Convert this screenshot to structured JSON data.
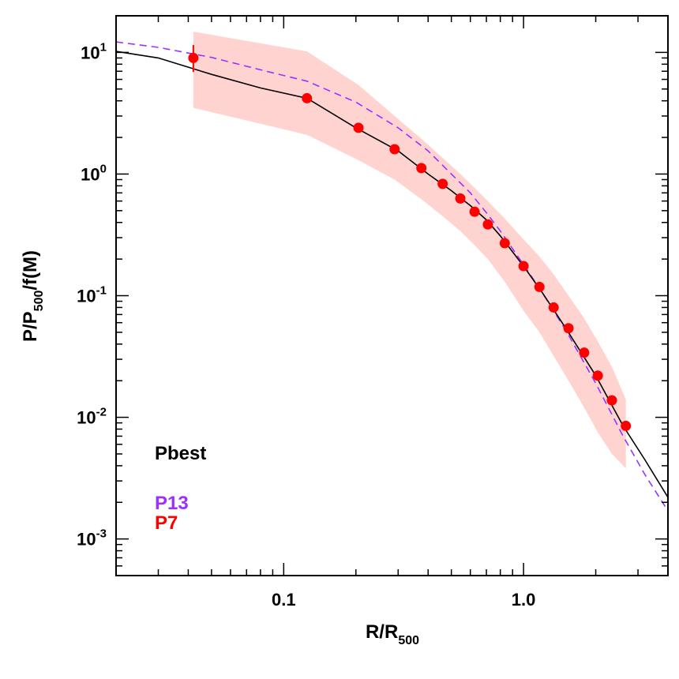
{
  "chart_data": {
    "type": "line",
    "xscale": "log",
    "yscale": "log",
    "xlim": [
      0.02,
      4.0
    ],
    "ylim": [
      0.0005,
      20
    ],
    "grid": false,
    "legend_placement": "bottom-left",
    "xlabel": {
      "main": "R/R",
      "sub": "500"
    },
    "ylabel": {
      "p1": "P/P",
      "sub": "500",
      "p2": "/f(M)"
    },
    "x_ticks": [
      {
        "value": 0.1,
        "label": "0.1"
      },
      {
        "value": 1.0,
        "label": "1.0"
      }
    ],
    "y_ticks": [
      {
        "value": 10,
        "base": "10",
        "exp": "1"
      },
      {
        "value": 1,
        "base": "10",
        "exp": "0"
      },
      {
        "value": 0.1,
        "base": "10",
        "exp": "-1"
      },
      {
        "value": 0.01,
        "base": "10",
        "exp": "-2"
      },
      {
        "value": 0.001,
        "base": "10",
        "exp": "-3"
      }
    ],
    "series": [
      {
        "name": "Pbest",
        "style": "solid",
        "color": "#000000",
        "x": [
          0.02,
          0.03,
          0.05,
          0.08,
          0.125,
          0.2,
          0.3,
          0.4,
          0.5,
          0.6,
          0.7,
          0.8,
          1.0,
          1.2,
          1.5,
          2.0,
          2.6,
          3.2,
          4.0
        ],
        "y": [
          10.2,
          9.0,
          6.6,
          5.1,
          4.2,
          2.4,
          1.55,
          1.0,
          0.73,
          0.55,
          0.42,
          0.31,
          0.175,
          0.105,
          0.054,
          0.022,
          0.0085,
          0.0045,
          0.0022
        ]
      },
      {
        "name": "P13",
        "style": "dashed",
        "color": "#9b30ff",
        "x": [
          0.02,
          0.03,
          0.05,
          0.08,
          0.125,
          0.2,
          0.3,
          0.4,
          0.5,
          0.6,
          0.7,
          0.8,
          1.0,
          1.2,
          1.5,
          2.0,
          2.6,
          3.2,
          4.0
        ],
        "y": [
          12.2,
          11.0,
          9.1,
          7.2,
          5.8,
          3.9,
          2.4,
          1.55,
          1.0,
          0.7,
          0.48,
          0.34,
          0.18,
          0.105,
          0.052,
          0.019,
          0.007,
          0.0034,
          0.0017
        ]
      },
      {
        "name": "P7",
        "style": "markers",
        "color": "#ff0000",
        "band_color": "#ffd4d0",
        "x": [
          0.042,
          0.125,
          0.205,
          0.29,
          0.375,
          0.46,
          0.545,
          0.625,
          0.71,
          0.835,
          1.0,
          1.165,
          1.335,
          1.54,
          1.79,
          2.04,
          2.335,
          2.67
        ],
        "y": [
          9.0,
          4.2,
          2.4,
          1.6,
          1.12,
          0.83,
          0.63,
          0.49,
          0.385,
          0.27,
          0.175,
          0.118,
          0.08,
          0.054,
          0.034,
          0.022,
          0.0138,
          0.0085
        ],
        "yerr_low": [
          6.9,
          4.0,
          2.3,
          1.55,
          1.09,
          0.81,
          0.61,
          0.48,
          0.375,
          0.265,
          0.17,
          0.115,
          0.078,
          0.052,
          0.033,
          0.021,
          0.013,
          0.0082
        ],
        "yerr_high": [
          11.5,
          4.4,
          2.5,
          1.67,
          1.16,
          0.86,
          0.65,
          0.51,
          0.395,
          0.28,
          0.18,
          0.121,
          0.082,
          0.056,
          0.035,
          0.023,
          0.0145,
          0.0089
        ],
        "band_x": [
          0.042,
          0.125,
          0.205,
          0.29,
          0.375,
          0.46,
          0.545,
          0.625,
          0.71,
          0.835,
          1.0,
          1.165,
          1.335,
          1.54,
          1.79,
          2.04,
          2.335,
          2.67
        ],
        "band_low": [
          3.5,
          2.1,
          1.3,
          0.9,
          0.62,
          0.45,
          0.34,
          0.26,
          0.2,
          0.13,
          0.075,
          0.05,
          0.032,
          0.02,
          0.012,
          0.0075,
          0.005,
          0.0038
        ],
        "band_high": [
          14.8,
          10.2,
          5.4,
          3.0,
          1.95,
          1.36,
          1.0,
          0.77,
          0.6,
          0.43,
          0.29,
          0.21,
          0.15,
          0.1,
          0.065,
          0.042,
          0.026,
          0.014
        ]
      }
    ],
    "legend": [
      {
        "label": "Pbest",
        "color": "#000000"
      },
      {
        "label": "P13",
        "color": "#9b30ff"
      },
      {
        "label": "P7",
        "color": "#ff0000"
      }
    ]
  }
}
